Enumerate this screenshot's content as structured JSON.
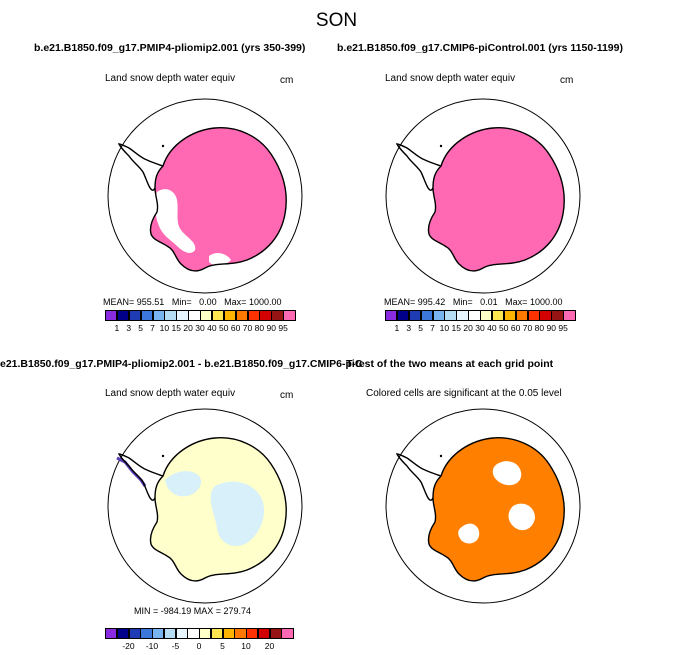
{
  "figure": {
    "season": "SON"
  },
  "panels": {
    "top_left": {
      "title": "b.e21.B1850.f09_g17.PMIP4-pliomip2.001 (yrs 350-399)",
      "variable": "Land snow depth water equiv",
      "units": "cm",
      "stats": {
        "mean_label": "MEAN=",
        "mean": "955.51",
        "min_label": "Min=",
        "min": "0.00",
        "max_label": "Max=",
        "max": "1000.00"
      },
      "fill_color": "#ff69b4"
    },
    "top_right": {
      "title": "b.e21.B1850.f09_g17.CMIP6-piControl.001 (yrs 1150-1199)",
      "variable": "Land snow depth water equiv",
      "units": "cm",
      "stats": {
        "mean_label": "MEAN=",
        "mean": "995.42",
        "min_label": "Min=",
        "min": "0.01",
        "max_label": "Max=",
        "max": "1000.00"
      },
      "fill_color": "#ff69b4"
    },
    "bottom_left": {
      "title": "e21.B1850.f09_g17.PMIP4-pliomip2.001 - b.e21.B1850.f09_g17.CMIP6-piControl.001",
      "variable": "Land snow depth water equiv",
      "units": "cm",
      "stats_text": "MIN = -984.19 MAX = 279.74",
      "fill_color": "#ffffcc"
    },
    "bottom_right": {
      "title": "T-test of the two means at each grid point",
      "subtitle": "Colored cells are significant at the 0.05 level",
      "fill_color": "#ff7f00"
    }
  },
  "colorbars": {
    "absolute": {
      "labels": [
        "1",
        "3",
        "5",
        "7",
        "10",
        "15",
        "20",
        "30",
        "40",
        "50",
        "60",
        "70",
        "80",
        "90",
        "95"
      ],
      "colors": [
        "#8a2be2",
        "#00008b",
        "#1e3cb4",
        "#3c78dc",
        "#78b4f0",
        "#b4dcf5",
        "#e6f5ff",
        "#ffffff",
        "#ffffc8",
        "#ffe650",
        "#ffb400",
        "#ff7800",
        "#ff3200",
        "#d20000",
        "#961414",
        "#ff69b4"
      ]
    },
    "difference": {
      "labels": [
        "-20",
        "-10",
        "-5",
        "0",
        "5",
        "10",
        "20"
      ],
      "colors": [
        "#8a2be2",
        "#00008b",
        "#1e3cb4",
        "#3c78dc",
        "#78b4f0",
        "#b4dcf5",
        "#e6f5ff",
        "#ffffff",
        "#ffffc8",
        "#ffe650",
        "#ffb400",
        "#ff7800",
        "#ff3200",
        "#d20000",
        "#961414",
        "#ff69b4"
      ]
    }
  }
}
